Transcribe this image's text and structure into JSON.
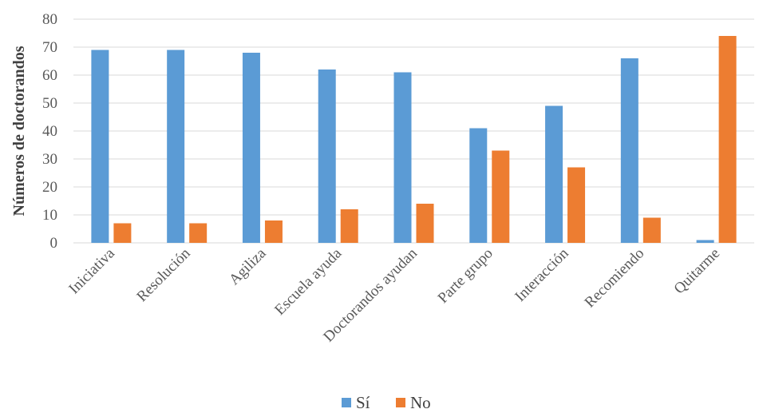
{
  "chart_data": {
    "type": "bar",
    "categories": [
      "Iniciativa",
      "Resolución",
      "Agiliza",
      "Escuela ayuda",
      "Doctorandos ayudan",
      "Parte grupo",
      "Interacción",
      "Recomiendo",
      "Quitarme"
    ],
    "series": [
      {
        "name": "Sí",
        "color": "#5b9bd5",
        "values": [
          69,
          69,
          68,
          62,
          61,
          41,
          49,
          66,
          1
        ]
      },
      {
        "name": "No",
        "color": "#ed7d31",
        "values": [
          7,
          7,
          8,
          12,
          14,
          33,
          27,
          9,
          74
        ]
      }
    ],
    "ylabel": "Números de doctorandos",
    "ylim": [
      0,
      80
    ],
    "yticks": [
      0,
      10,
      20,
      30,
      40,
      50,
      60,
      70,
      80
    ],
    "grid": true,
    "legend": "bottom-center"
  }
}
